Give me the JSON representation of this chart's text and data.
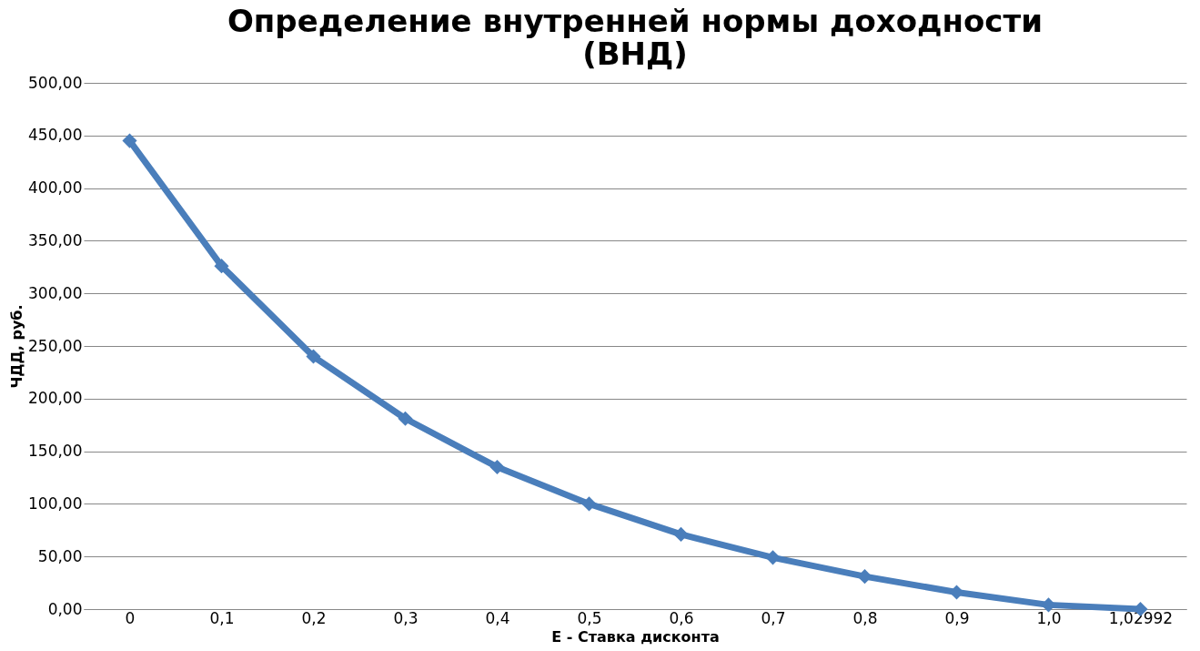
{
  "chart_data": {
    "type": "line",
    "title": "Определение внутренней нормы доходности (ВНД)",
    "xlabel": "E - Ставка дисконта",
    "ylabel": "ЧДД,  руб.",
    "categories": [
      "0",
      "0,1",
      "0,2",
      "0,3",
      "0,4",
      "0,5",
      "0,6",
      "0,7",
      "0,8",
      "0,9",
      "1,0",
      "1,02992"
    ],
    "series": [
      {
        "color": "#4a7ebb",
        "values": [
          445,
          326,
          240,
          181,
          135,
          100,
          71,
          49,
          31,
          16,
          4,
          0
        ]
      }
    ],
    "ylim": [
      0,
      500
    ],
    "yticks": [
      {
        "value": 0,
        "label": "0,00"
      },
      {
        "value": 50,
        "label": "50,00"
      },
      {
        "value": 100,
        "label": "100,00"
      },
      {
        "value": 150,
        "label": "150,00"
      },
      {
        "value": 200,
        "label": "200,00"
      },
      {
        "value": 250,
        "label": "250,00"
      },
      {
        "value": 300,
        "label": "300,00"
      },
      {
        "value": 350,
        "label": "350,00"
      },
      {
        "value": 400,
        "label": "400,00"
      },
      {
        "value": 450,
        "label": "450,00"
      },
      {
        "value": 500,
        "label": "500,00"
      }
    ],
    "grid": "y",
    "legend": false,
    "marker": "diamond",
    "line_style": "solid"
  }
}
